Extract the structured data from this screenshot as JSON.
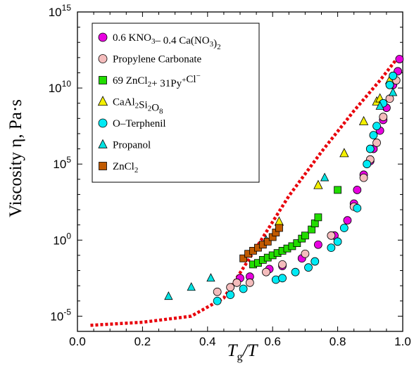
{
  "chart_data": {
    "type": "scatter",
    "title": "",
    "xlabel": {
      "main": "T",
      "sub": "g",
      "rest": "/T"
    },
    "ylabel": "Viscosity η, Pa·s",
    "xlim": [
      0.0,
      1.0
    ],
    "ylim_log10": [
      -6,
      15
    ],
    "y_scale": "log",
    "x_ticks": [
      "0.0",
      "0.2",
      "0.4",
      "0.6",
      "0.8",
      "1.0"
    ],
    "x_tick_values": [
      0.0,
      0.2,
      0.4,
      0.6,
      0.8,
      1.0
    ],
    "y_ticks": [
      {
        "base": "10",
        "exp": "-5",
        "log": -5
      },
      {
        "base": "10",
        "exp": "0",
        "log": 0
      },
      {
        "base": "10",
        "exp": "5",
        "log": 5
      },
      {
        "base": "10",
        "exp": "10",
        "log": 10
      },
      {
        "base": "10",
        "exp": "15",
        "log": 15
      }
    ],
    "grid": false,
    "legend_placement": "top-left",
    "fragility_curve": {
      "color": "#e8000b",
      "style": "dotted",
      "points_log10": [
        [
          0.04,
          -5.6
        ],
        [
          0.2,
          -5.4
        ],
        [
          0.35,
          -5.0
        ],
        [
          0.45,
          -3.8
        ],
        [
          0.55,
          -0.5
        ],
        [
          0.65,
          2.9
        ],
        [
          0.75,
          5.8
        ],
        [
          0.85,
          8.5
        ],
        [
          0.93,
          10.5
        ],
        [
          0.985,
          12.0
        ]
      ]
    },
    "series": [
      {
        "name_parts": [
          [
            "0.6 KNO",
            ""
          ],
          [
            "3",
            "sub"
          ],
          [
            "– 0.4 Ca(NO",
            ""
          ],
          [
            "3",
            "sub"
          ],
          [
            ")",
            ""
          ],
          [
            "2",
            "sub"
          ]
        ],
        "marker": "circle",
        "color": "#e800e0",
        "size": 5.5,
        "points_log10": [
          [
            0.5,
            -2.5
          ],
          [
            0.53,
            -2.4
          ],
          [
            0.59,
            -1.9
          ],
          [
            0.63,
            -1.7
          ],
          [
            0.69,
            -1.2
          ],
          [
            0.74,
            -0.3
          ],
          [
            0.79,
            0.3
          ],
          [
            0.83,
            1.3
          ],
          [
            0.85,
            2.4
          ],
          [
            0.86,
            3.3
          ],
          [
            0.88,
            4.3
          ],
          [
            0.9,
            5.2
          ],
          [
            0.91,
            6.0
          ],
          [
            0.93,
            7.2
          ],
          [
            0.94,
            7.9
          ],
          [
            0.95,
            8.7
          ],
          [
            0.97,
            10.2
          ],
          [
            0.985,
            11.1
          ],
          [
            0.99,
            11.9
          ]
        ]
      },
      {
        "name_parts": [
          [
            "Propylene Carbonate",
            ""
          ]
        ],
        "marker": "circle",
        "color": "#f4bcbc",
        "size": 5.5,
        "points_log10": [
          [
            0.43,
            -3.4
          ],
          [
            0.47,
            -3.1
          ],
          [
            0.49,
            -2.8
          ],
          [
            0.53,
            -2.8
          ],
          [
            0.58,
            -2.1
          ],
          [
            0.63,
            -1.6
          ],
          [
            0.7,
            -0.9
          ],
          [
            0.78,
            0.3
          ],
          [
            0.85,
            2.2
          ],
          [
            0.88,
            4.1
          ],
          [
            0.9,
            5.3
          ],
          [
            0.92,
            6.4
          ],
          [
            0.94,
            8.1
          ],
          [
            0.96,
            9.3
          ],
          [
            0.98,
            10.5
          ]
        ]
      },
      {
        "name_parts": [
          [
            "69 ZnCl",
            ""
          ],
          [
            "2",
            "sub"
          ],
          [
            "+ 31Py",
            ""
          ],
          [
            "+",
            "sup"
          ],
          [
            "Cl",
            ""
          ],
          [
            "−",
            "sup"
          ]
        ],
        "marker": "square",
        "color": "#22dd00",
        "size": 5,
        "points_log10": [
          [
            0.54,
            -1.6
          ],
          [
            0.555,
            -1.5
          ],
          [
            0.57,
            -1.3
          ],
          [
            0.585,
            -1.15
          ],
          [
            0.6,
            -1.0
          ],
          [
            0.615,
            -0.85
          ],
          [
            0.63,
            -0.7
          ],
          [
            0.645,
            -0.55
          ],
          [
            0.66,
            -0.4
          ],
          [
            0.675,
            -0.2
          ],
          [
            0.69,
            0.1
          ],
          [
            0.7,
            0.3
          ],
          [
            0.72,
            0.7
          ],
          [
            0.73,
            1.1
          ],
          [
            0.74,
            1.5
          ],
          [
            0.8,
            3.3
          ]
        ]
      },
      {
        "name_parts": [
          [
            "CaAl",
            ""
          ],
          [
            "2",
            "sub"
          ],
          [
            "Si",
            ""
          ],
          [
            "2",
            "sub"
          ],
          [
            "O",
            ""
          ],
          [
            "8",
            "sub"
          ]
        ],
        "marker": "triangle",
        "color": "#f4f000",
        "size": 6,
        "points_log10": [
          [
            0.62,
            1.2
          ],
          [
            0.74,
            3.6
          ],
          [
            0.82,
            5.7
          ],
          [
            0.88,
            7.8
          ],
          [
            0.92,
            9.1
          ],
          [
            0.93,
            9.3
          ],
          [
            0.96,
            10.5
          ]
        ]
      },
      {
        "name_parts": [
          [
            "O–Terphenil",
            ""
          ]
        ],
        "marker": "circle",
        "color": "#00eaf4",
        "size": 5.5,
        "points_log10": [
          [
            0.43,
            -4.0
          ],
          [
            0.47,
            -3.6
          ],
          [
            0.51,
            -3.2
          ],
          [
            0.61,
            -2.6
          ],
          [
            0.63,
            -2.5
          ],
          [
            0.67,
            -2.1
          ],
          [
            0.71,
            -1.8
          ],
          [
            0.73,
            -1.4
          ],
          [
            0.78,
            -0.5
          ],
          [
            0.8,
            -0.1
          ],
          [
            0.82,
            0.8
          ],
          [
            0.86,
            2.1
          ],
          [
            0.89,
            5.0
          ],
          [
            0.9,
            6.0
          ],
          [
            0.91,
            6.9
          ],
          [
            0.92,
            7.5
          ],
          [
            0.94,
            9.0
          ],
          [
            0.96,
            10.2
          ],
          [
            0.97,
            10.8
          ]
        ]
      },
      {
        "name_parts": [
          [
            "Propanol",
            ""
          ]
        ],
        "marker": "triangle",
        "color": "#00e2e2",
        "size": 5.5,
        "points_log10": [
          [
            0.28,
            -3.7
          ],
          [
            0.35,
            -3.1
          ],
          [
            0.41,
            -2.5
          ],
          [
            0.58,
            0.0
          ],
          [
            0.76,
            4.1
          ],
          [
            0.93,
            8.8
          ],
          [
            0.97,
            9.7
          ]
        ]
      },
      {
        "name_parts": [
          [
            "ZnCl",
            ""
          ],
          [
            "2",
            "sub"
          ]
        ],
        "marker": "square",
        "color": "#c05a00",
        "size": 5,
        "points_log10": [
          [
            0.51,
            -1.2
          ],
          [
            0.525,
            -0.9
          ],
          [
            0.54,
            -0.7
          ],
          [
            0.555,
            -0.5
          ],
          [
            0.57,
            -0.3
          ],
          [
            0.585,
            -0.1
          ],
          [
            0.6,
            0.2
          ],
          [
            0.61,
            0.5
          ],
          [
            0.62,
            0.8
          ]
        ]
      }
    ]
  }
}
